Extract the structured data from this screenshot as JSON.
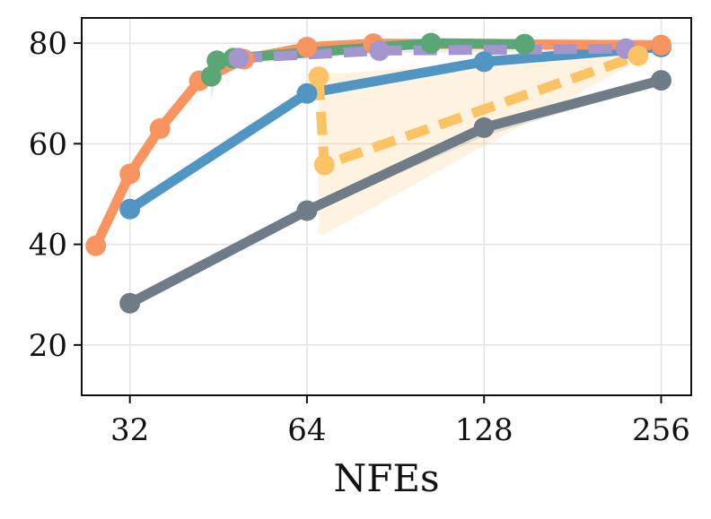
{
  "chart_data": {
    "type": "line",
    "title": "",
    "xlabel": "NFEs",
    "ylabel": "",
    "xscale": "log2",
    "xlim": [
      26.5,
      288
    ],
    "ylim": [
      10,
      85
    ],
    "xticks": [
      32,
      64,
      128,
      256
    ],
    "xtick_labels": [
      "32",
      "64",
      "128",
      "256"
    ],
    "yticks": [
      20,
      40,
      60,
      80
    ],
    "ytick_labels": [
      "20",
      "40",
      "60",
      "80"
    ],
    "grid": true,
    "legend": "none",
    "series": [
      {
        "name": "gray",
        "color": "#6f7b87",
        "dash": "solid",
        "x": [
          32,
          64,
          128,
          256
        ],
        "y": [
          28.3,
          46.7,
          63.2,
          72.6
        ],
        "band_lower": [
          27.8,
          46.0,
          61.5,
          72.0
        ],
        "band_upper": [
          28.8,
          47.2,
          64.0,
          73.2
        ]
      },
      {
        "name": "blue",
        "color": "#5196c2",
        "dash": "solid",
        "x": [
          32,
          64,
          128,
          256
        ],
        "y": [
          47.0,
          70.0,
          76.3,
          79.2
        ],
        "band_lower": [
          46.6,
          69.4,
          75.8,
          78.7
        ],
        "band_upper": [
          47.4,
          70.6,
          76.8,
          79.7
        ]
      },
      {
        "name": "orange",
        "color": "#f7945f",
        "dash": "solid",
        "x": [
          28,
          32,
          36,
          42,
          50,
          64,
          83,
          256
        ],
        "y": [
          39.7,
          54.0,
          63.0,
          72.5,
          76.8,
          79.2,
          79.9,
          79.6
        ],
        "band_lower": [
          39.3,
          53.5,
          62.5,
          72.0,
          76.3,
          78.8,
          79.5,
          79.2
        ],
        "band_upper": [
          40.1,
          54.5,
          63.5,
          73.0,
          77.3,
          79.6,
          80.3,
          80.0
        ]
      },
      {
        "name": "green",
        "color": "#5aa674",
        "dash": "solid",
        "x": [
          44,
          45,
          48,
          104,
          150
        ],
        "y": [
          73.4,
          76.5,
          77.0,
          80.0,
          79.8
        ],
        "band_lower": [
          68.2,
          75.5,
          76.2,
          79.6,
          79.4
        ],
        "band_upper": [
          74.2,
          77.5,
          77.8,
          80.4,
          80.2
        ]
      },
      {
        "name": "purple",
        "color": "#a495cc",
        "dash": "dashed",
        "x": [
          49,
          85,
          223
        ],
        "y": [
          77.0,
          78.5,
          78.9
        ],
        "band_lower": [
          75.8,
          78.0,
          78.5
        ],
        "band_upper": [
          77.8,
          79.0,
          79.3
        ]
      },
      {
        "name": "yellow",
        "color": "#fbc364",
        "dash": "dashed",
        "x": [
          67,
          68.5,
          234
        ],
        "y": [
          73.3,
          55.8,
          77.5
        ],
        "band_lower": [
          42.0,
          42.0,
          76.5
        ],
        "band_upper": [
          73.8,
          73.8,
          78.0
        ]
      }
    ]
  }
}
